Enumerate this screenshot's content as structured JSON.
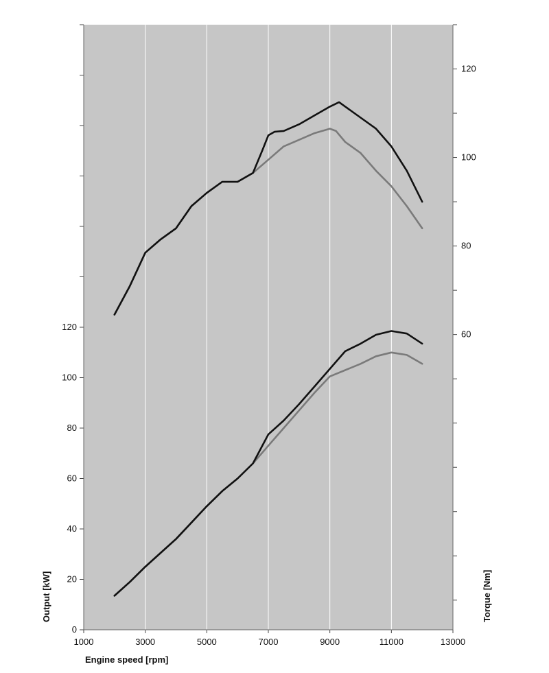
{
  "chart_data": {
    "type": "line",
    "x": {
      "label": "Engine speed [rpm]",
      "lim": [
        1000,
        13000
      ],
      "ticks": [
        1000,
        3000,
        5000,
        7000,
        9000,
        11000,
        13000
      ],
      "tick_labels": [
        "1000",
        "3000",
        "5000",
        "7000",
        "9000",
        "11000",
        "13000"
      ]
    },
    "y_left": {
      "label": "Output [kW]",
      "lim": [
        0,
        240
      ],
      "ticks": [
        0,
        20,
        40,
        60,
        80,
        100,
        120
      ],
      "tick_labels": [
        "0",
        "20",
        "40",
        "60",
        "80",
        "100",
        "120"
      ],
      "minor_ticks": [
        140,
        160,
        180,
        200,
        220,
        240
      ]
    },
    "y_right": {
      "label": "Torque [Nm]",
      "lim": [
        -6.7,
        130
      ],
      "ticks": [
        60,
        80,
        100,
        120
      ],
      "tick_labels": [
        "60",
        "80",
        "100",
        "120"
      ],
      "minor_ticks": [
        0,
        10,
        20,
        30,
        40,
        50,
        70,
        90,
        110,
        130
      ]
    },
    "grid": true,
    "colors": {
      "plot_background": "#c6c6c6",
      "grid": "#ffffff",
      "series_dark": "#111111",
      "series_light": "#7a7a7a"
    },
    "series": [
      {
        "axis": "right",
        "color": "#7a7a7a",
        "x": [
          2000,
          2500,
          3000,
          3500,
          4000,
          4500,
          5000,
          5500,
          6000,
          6500,
          7000,
          7500,
          8000,
          8500,
          9000,
          9200,
          9500,
          10000,
          10500,
          11000,
          11500,
          12000
        ],
        "y": [
          64.5,
          71,
          78.5,
          81.5,
          84,
          89,
          92,
          94.5,
          94.5,
          96.5,
          99.5,
          102.5,
          104,
          105.5,
          106.5,
          106,
          103.5,
          101,
          97,
          93.5,
          89,
          84
        ]
      },
      {
        "axis": "right",
        "color": "#111111",
        "x": [
          2000,
          2500,
          3000,
          3500,
          4000,
          4500,
          5000,
          5500,
          6000,
          6500,
          6800,
          7000,
          7200,
          7500,
          8000,
          8500,
          9000,
          9300,
          9500,
          10000,
          10500,
          11000,
          11500,
          12000
        ],
        "y": [
          64.5,
          71,
          78.5,
          81.5,
          84,
          89,
          92,
          94.5,
          94.5,
          96.5,
          101.5,
          105,
          105.8,
          106,
          107.5,
          109.5,
          111.5,
          112.5,
          111.5,
          109,
          106.5,
          102.5,
          97,
          90
        ]
      },
      {
        "axis": "left",
        "color": "#7a7a7a",
        "x": [
          2000,
          2500,
          3000,
          3500,
          4000,
          4500,
          5000,
          5500,
          6000,
          6500,
          7000,
          7500,
          8000,
          8500,
          9000,
          9500,
          10000,
          10500,
          11000,
          11500,
          12000
        ],
        "y": [
          13.5,
          19,
          25,
          30.5,
          36,
          42.5,
          49,
          55,
          60,
          66,
          73,
          80,
          87,
          94,
          100.5,
          103,
          105.5,
          108.5,
          110,
          109,
          105.5
        ]
      },
      {
        "axis": "left",
        "color": "#111111",
        "x": [
          2000,
          2500,
          3000,
          3500,
          4000,
          4500,
          5000,
          5500,
          6000,
          6500,
          7000,
          7500,
          8000,
          8500,
          9000,
          9500,
          10000,
          10500,
          11000,
          11500,
          12000
        ],
        "y": [
          13.5,
          19,
          25,
          30.5,
          36,
          42.5,
          49,
          55,
          60,
          66,
          77.5,
          83,
          89.5,
          96.5,
          103.5,
          110.5,
          113.5,
          117,
          118.5,
          117.5,
          113.5
        ]
      }
    ]
  }
}
